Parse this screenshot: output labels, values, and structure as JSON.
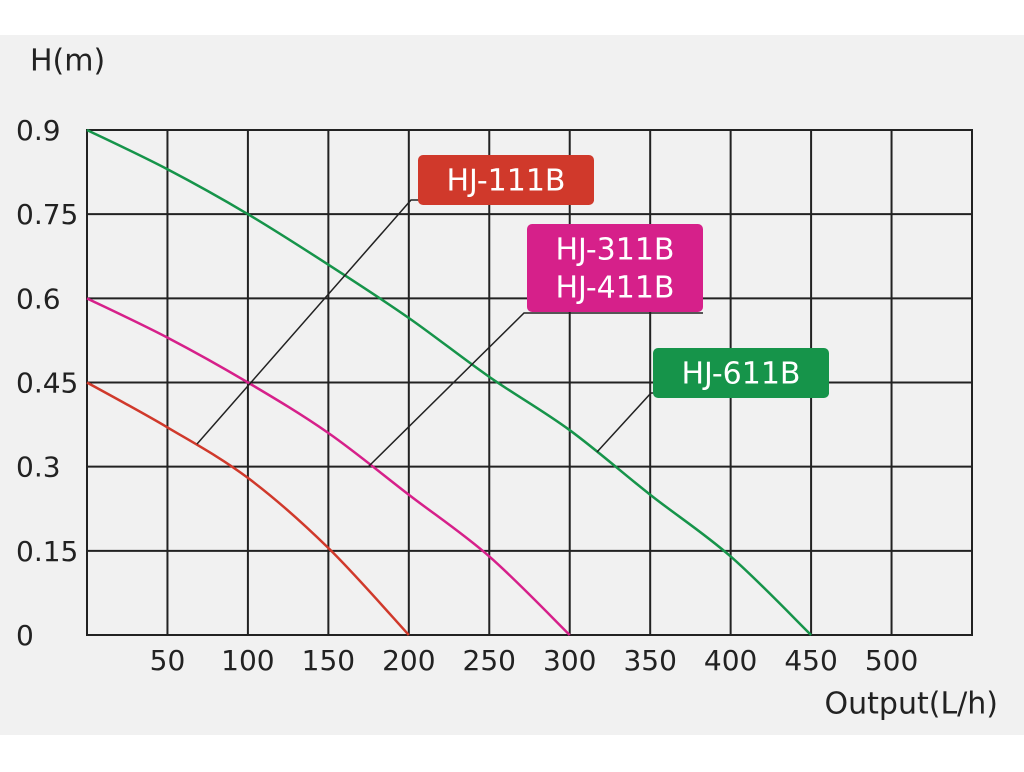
{
  "chart_data": {
    "type": "line",
    "ylabel": "H(m)",
    "xlabel": "Output(L/h)",
    "xlim": [
      0,
      550
    ],
    "xticks": [
      50,
      100,
      150,
      200,
      250,
      300,
      350,
      400,
      450,
      500
    ],
    "ylim": [
      0,
      0.9
    ],
    "yticks": [
      0,
      0.15,
      0.3,
      0.45,
      0.6,
      0.75,
      0.9
    ],
    "grid": true,
    "x": [
      0,
      50,
      100,
      150,
      200,
      250,
      300,
      350,
      400,
      450
    ],
    "series": [
      {
        "names": [
          "HJ-111B"
        ],
        "color": "#d0392b",
        "values": [
          0.45,
          0.37,
          0.28,
          0.155,
          0,
          null,
          null,
          null,
          null,
          null
        ]
      },
      {
        "names": [
          "HJ-311B",
          "HJ-411B"
        ],
        "color": "#d6208a",
        "values": [
          0.6,
          0.53,
          0.45,
          0.36,
          0.25,
          0.14,
          0,
          null,
          null,
          null
        ]
      },
      {
        "names": [
          "HJ-611B"
        ],
        "color": "#16944a",
        "values": [
          0.9,
          0.83,
          0.75,
          0.66,
          0.565,
          0.46,
          0.365,
          0.25,
          0.14,
          0
        ]
      }
    ]
  }
}
